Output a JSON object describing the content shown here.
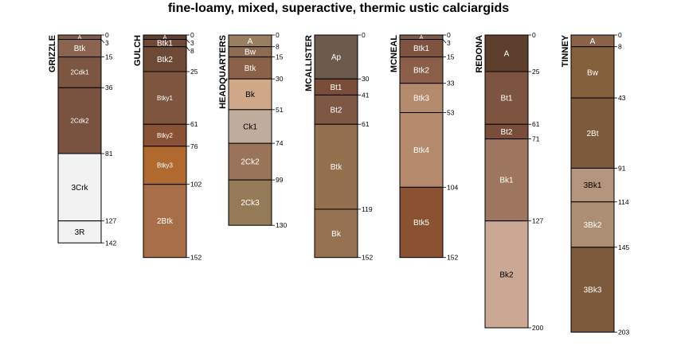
{
  "title": "fine-loamy, mixed, superactive, thermic ustic calciargids",
  "chart_data": {
    "type": "soil-profile-sketch",
    "depth_units": "cm",
    "profiles": [
      {
        "name": "GRIZZLE",
        "horizons": [
          {
            "name": "A",
            "top": 0,
            "bottom": 3,
            "color": "#7a5a48"
          },
          {
            "name": "Btk",
            "top": 3,
            "bottom": 15,
            "color": "#8a6450"
          },
          {
            "name": "2Cdk1",
            "top": 15,
            "bottom": 36,
            "color": "#7c5640"
          },
          {
            "name": "2Cdk2",
            "top": 36,
            "bottom": 81,
            "color": "#7a5240"
          },
          {
            "name": "3Crk",
            "top": 81,
            "bottom": 127,
            "color": "#f2f2f2"
          },
          {
            "name": "3R",
            "top": 127,
            "bottom": 142,
            "color": "#f2f2f2"
          }
        ]
      },
      {
        "name": "GULCH",
        "horizons": [
          {
            "name": "A",
            "top": 0,
            "bottom": 3,
            "color": "#5e4030"
          },
          {
            "name": "Btk1",
            "top": 3,
            "bottom": 8,
            "color": "#6e4a36"
          },
          {
            "name": "Btk2",
            "top": 8,
            "bottom": 25,
            "color": "#6e4a36"
          },
          {
            "name": "Btky1",
            "top": 25,
            "bottom": 61,
            "color": "#7e5640"
          },
          {
            "name": "Btky2",
            "top": 61,
            "bottom": 76,
            "color": "#8a5234"
          },
          {
            "name": "Btky3",
            "top": 76,
            "bottom": 102,
            "color": "#b06a30"
          },
          {
            "name": "2Btk",
            "top": 102,
            "bottom": 152,
            "color": "#a86e48"
          }
        ]
      },
      {
        "name": "HEADQUARTERS",
        "horizons": [
          {
            "name": "A",
            "top": 0,
            "bottom": 8,
            "color": "#9a7e60"
          },
          {
            "name": "Bw",
            "top": 8,
            "bottom": 15,
            "color": "#8e6c50"
          },
          {
            "name": "Btk",
            "top": 15,
            "bottom": 30,
            "color": "#8a6248"
          },
          {
            "name": "Bk",
            "top": 30,
            "bottom": 51,
            "color": "#d0a888"
          },
          {
            "name": "Ck1",
            "top": 51,
            "bottom": 74,
            "color": "#c0ac9c"
          },
          {
            "name": "2Ck2",
            "top": 74,
            "bottom": 99,
            "color": "#9a7458"
          },
          {
            "name": "2Ck3",
            "top": 99,
            "bottom": 130,
            "color": "#957a58"
          }
        ]
      },
      {
        "name": "MCALLISTER",
        "horizons": [
          {
            "name": "Ap",
            "top": 0,
            "bottom": 30,
            "color": "#6e5a4c"
          },
          {
            "name": "Bt1",
            "top": 30,
            "bottom": 41,
            "color": "#7a4c3a"
          },
          {
            "name": "Bt2",
            "top": 41,
            "bottom": 61,
            "color": "#7e5844"
          },
          {
            "name": "Btk",
            "top": 61,
            "bottom": 119,
            "color": "#94704e"
          },
          {
            "name": "Bk",
            "top": 119,
            "bottom": 152,
            "color": "#977250"
          }
        ]
      },
      {
        "name": "MCNEAL",
        "horizons": [
          {
            "name": "A",
            "top": 0,
            "bottom": 3,
            "color": "#7a5a48"
          },
          {
            "name": "Btk1",
            "top": 3,
            "bottom": 15,
            "color": "#7e5440"
          },
          {
            "name": "Btk2",
            "top": 15,
            "bottom": 33,
            "color": "#8a5e48"
          },
          {
            "name": "Btk3",
            "top": 33,
            "bottom": 53,
            "color": "#b48a6c"
          },
          {
            "name": "Btk4",
            "top": 53,
            "bottom": 104,
            "color": "#b4896c"
          },
          {
            "name": "Btk5",
            "top": 104,
            "bottom": 152,
            "color": "#8a5230"
          }
        ]
      },
      {
        "name": "REDONA",
        "horizons": [
          {
            "name": "A",
            "top": 0,
            "bottom": 25,
            "color": "#5e3e2c"
          },
          {
            "name": "Bt1",
            "top": 25,
            "bottom": 61,
            "color": "#7c5440"
          },
          {
            "name": "Bt2",
            "top": 61,
            "bottom": 71,
            "color": "#7a4c3a"
          },
          {
            "name": "Bk1",
            "top": 71,
            "bottom": 127,
            "color": "#9e7660"
          },
          {
            "name": "Bk2",
            "top": 127,
            "bottom": 200,
            "color": "#caa894"
          }
        ]
      },
      {
        "name": "TINNEY",
        "horizons": [
          {
            "name": "A",
            "top": 0,
            "bottom": 8,
            "color": "#8a6448"
          },
          {
            "name": "Bw",
            "top": 8,
            "bottom": 43,
            "color": "#84603c"
          },
          {
            "name": "2Bt",
            "top": 43,
            "bottom": 91,
            "color": "#7e5a3c"
          },
          {
            "name": "3Bk1",
            "top": 91,
            "bottom": 114,
            "color": "#b4947c"
          },
          {
            "name": "3Bk2",
            "top": 114,
            "bottom": 145,
            "color": "#ac8e74"
          },
          {
            "name": "3Bk3",
            "top": 145,
            "bottom": 203,
            "color": "#7e5a3c"
          }
        ]
      }
    ]
  }
}
